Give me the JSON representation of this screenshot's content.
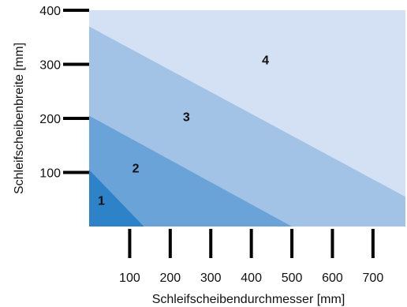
{
  "chart_data": {
    "type": "area",
    "title": "",
    "xlabel": "Schleifscheibendurchmesser [mm]",
    "ylabel": "Schleifscheibenbreite [mm]",
    "xlim": [
      0,
      780
    ],
    "ylim": [
      0,
      400
    ],
    "x_ticks": [
      100,
      200,
      300,
      400,
      500,
      600,
      700
    ],
    "x_tick_labels": [
      "100",
      "200",
      "300",
      "400",
      "500",
      "600",
      "700"
    ],
    "y_ticks": [
      100,
      200,
      300,
      400
    ],
    "y_tick_labels": [
      "100",
      "200",
      "300",
      "400"
    ],
    "grid": false,
    "zones": [
      {
        "name": "1",
        "color": "#2e82c8",
        "boundary": [
          [
            0,
            105
          ],
          [
            135,
            0
          ]
        ],
        "label_pos": [
          30,
          40
        ]
      },
      {
        "name": "2",
        "color": "#6aa3d8",
        "boundary": [
          [
            0,
            205
          ],
          [
            500,
            0
          ]
        ],
        "label_pos": [
          115,
          100
        ]
      },
      {
        "name": "3",
        "color": "#a3c3e6",
        "boundary": [
          [
            0,
            370
          ],
          [
            780,
            55
          ]
        ],
        "label_pos": [
          240,
          195
        ]
      },
      {
        "name": "4",
        "color": "#d4e1f4",
        "boundary": [
          [
            0,
            400
          ],
          [
            780,
            400
          ]
        ],
        "label_pos": [
          435,
          300
        ]
      }
    ]
  }
}
